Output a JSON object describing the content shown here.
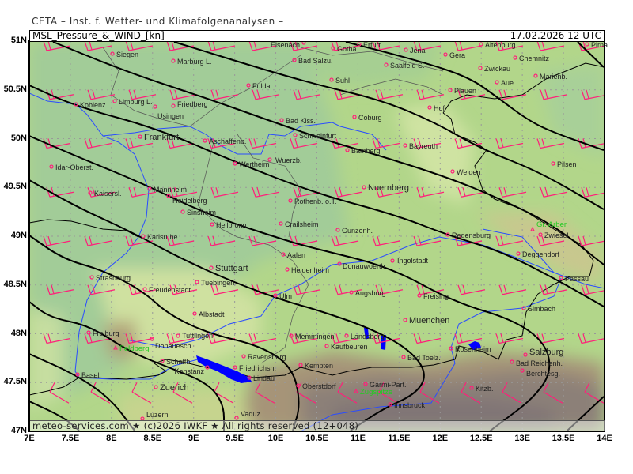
{
  "header": {
    "institute": "CETA – Inst. f. Wetter- und Klimafolgenanalysen –",
    "product": "MSL_Pressure_&_WIND_[kn]",
    "valid_time": "17.02.2026 12 UTC"
  },
  "footer": "meteo-services.com ★ (c)2026 IWKF ★ All rights reserved (12+048)",
  "axes": {
    "lat_labels": [
      "51N",
      "50.5N",
      "50N",
      "49.5N",
      "49N",
      "48.5N",
      "48N",
      "47.5N",
      "47N"
    ],
    "lon_labels": [
      "7E",
      "7.5E",
      "8E",
      "8.5E",
      "9E",
      "9.5E",
      "10E",
      "10.5E",
      "11E",
      "11.5E",
      "12E",
      "12.5E",
      "13E",
      "13.5E",
      "14E"
    ]
  },
  "cities": [
    "Eisenach",
    "Gotha",
    "Erfurt",
    "Jena",
    "Gera",
    "Altenburg",
    "Chemnitz",
    "Pirna",
    "Siegen",
    "Marburg L.",
    "Bad Salzu.",
    "Saalfeld S.",
    "Zwickau",
    "Fulda",
    "Suhl",
    "Aue",
    "Marienb.",
    "Plauen",
    "Koblenz",
    "Limburg L.",
    "Usingen",
    "Friedberg",
    "Hof",
    "Coburg",
    "Bad Kiss.",
    "Schweinfurt",
    "Frankfurt",
    "Aschaffenb.",
    "Bayreuth",
    "Bamberg",
    "Wertheim",
    "Wuerzb.",
    "Idar-Oberst.",
    "Pilsen",
    "Weiden",
    "Nuernberg",
    "Mannheim",
    "Kaisersl.",
    "Heidelberg",
    "Rothenb. o.T.",
    "Sinsheim",
    "Heilbronn",
    "Crailsheim",
    "Gunzenh.",
    "Karlsruhe",
    "Regensburg",
    "Zwiesel",
    "Aalen",
    "Stuttgart",
    "Heidenheim",
    "Donauwoerth",
    "Ingolstadt",
    "Deggendorf",
    "Strasbourg",
    "Passau",
    "Tuebingen",
    "Freudenstadt",
    "Ulm",
    "Augsburg",
    "Freising",
    "Simbach",
    "Albstadt",
    "Muenchen",
    "Freiburg",
    "Tuttlingen",
    "Donauesch.",
    "Memmingen",
    "Landsberg",
    "Kaufbeuren",
    "Rosenheim",
    "Ravensburg",
    "Kempten",
    "Bad Toelz.",
    "Salzburg",
    "Schaffh.",
    "Friedrichsh.",
    "Konstanz",
    "Bad Reichenh.",
    "Berchtesg.",
    "Lindau",
    "Basel",
    "Zuerich",
    "Oberstdorf",
    "Garmi-Part.",
    "Kitzb.",
    "Innsbruck",
    "Luzern",
    "Vaduz"
  ],
  "peaks": [
    "Feldberg",
    "Gr. Arber",
    "Zugspitze"
  ],
  "colors": {
    "isobar": "#000000",
    "wind_barb": "#ff1f7a",
    "city_marker": "#ff1f7a",
    "peak_label": "#22cc22",
    "river": "#2040ff",
    "lake": "#0000ff",
    "lowland": "#a2cc98",
    "plain": "#b4d888",
    "hills": "#d2e4a2",
    "alps": "#8c8078"
  }
}
